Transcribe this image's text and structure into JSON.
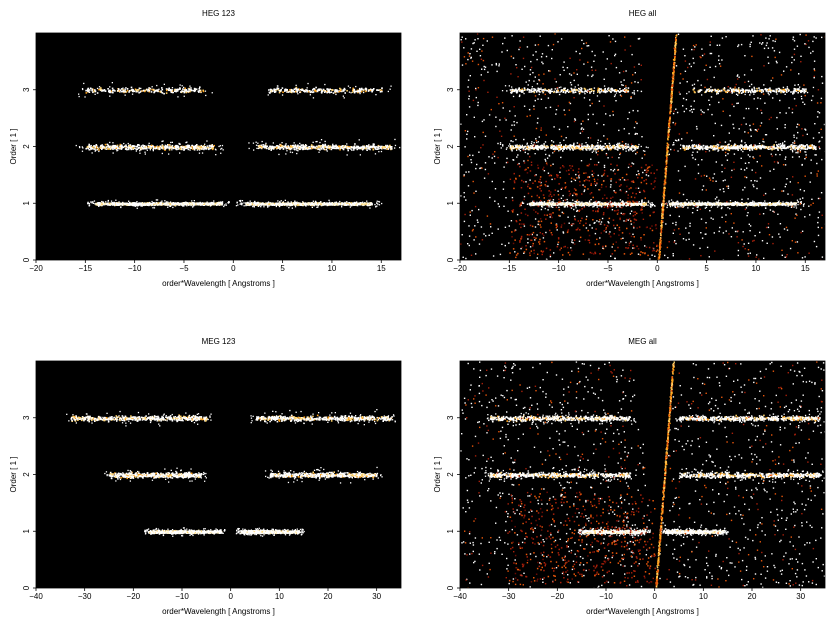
{
  "chart_data": [
    {
      "type": "heatmap",
      "title": "HEG 123",
      "xlabel": "order*Wavelength [ Angstroms ]",
      "ylabel": "Order [ 1 ]",
      "xlim": [
        -20,
        17
      ],
      "ylim": [
        0,
        4
      ],
      "xticks": [
        -20,
        -15,
        -10,
        -5,
        0,
        5,
        10,
        15
      ],
      "yticks": [
        0,
        1,
        2,
        3
      ],
      "background": "#000000",
      "grid": false,
      "bands": [
        {
          "y": 1,
          "segments": [
            [
              -14,
              -1.2
            ],
            [
              1.2,
              14
            ]
          ],
          "intensity": "high"
        },
        {
          "y": 2,
          "segments": [
            [
              -15,
              -2
            ],
            [
              2.5,
              16
            ]
          ],
          "intensity": "medium"
        },
        {
          "y": 3,
          "segments": [
            [
              -15,
              -3
            ],
            [
              3.5,
              15
            ]
          ],
          "intensity": "low"
        }
      ]
    },
    {
      "type": "heatmap",
      "title": "HEG all",
      "xlabel": "order*Wavelength [ Angstroms ]",
      "ylabel": "Order [ 1 ]",
      "xlim": [
        -20,
        17
      ],
      "ylim": [
        0,
        4
      ],
      "xticks": [
        -20,
        -15,
        -10,
        -5,
        0,
        5,
        10,
        15
      ],
      "yticks": [
        0,
        1,
        2,
        3
      ],
      "background": "#000000",
      "grid": false,
      "bands": [
        {
          "y": 1,
          "segments": [
            [
              -13,
              -1.2
            ],
            [
              1.2,
              14
            ]
          ],
          "intensity": "high"
        },
        {
          "y": 2,
          "segments": [
            [
              -15,
              -2
            ],
            [
              2.5,
              16
            ]
          ],
          "intensity": "medium"
        },
        {
          "y": 3,
          "segments": [
            [
              -15,
              -3
            ],
            [
              3.5,
              15
            ]
          ],
          "intensity": "low"
        }
      ]
    },
    {
      "type": "heatmap",
      "title": "MEG 123",
      "xlabel": "order*Wavelength [ Angstroms ]",
      "ylabel": "Order [ 1 ]",
      "xlim": [
        -40,
        35
      ],
      "ylim": [
        0,
        4
      ],
      "xticks": [
        -40,
        -30,
        -20,
        -10,
        0,
        10,
        20,
        30
      ],
      "yticks": [
        0,
        1,
        2,
        3
      ],
      "background": "#000000",
      "grid": false,
      "bands": [
        {
          "y": 1,
          "segments": [
            [
              -17,
              -2
            ],
            [
              2,
              14
            ]
          ],
          "intensity": "high"
        },
        {
          "y": 2,
          "segments": [
            [
              -25,
              -6
            ],
            [
              8,
              30
            ]
          ],
          "intensity": "medium"
        },
        {
          "y": 3,
          "segments": [
            [
              -33,
              -5
            ],
            [
              5,
              33
            ]
          ],
          "intensity": "medium"
        }
      ]
    },
    {
      "type": "heatmap",
      "title": "MEG all",
      "xlabel": "order*Wavelength [ Angstroms ]",
      "ylabel": "Order [ 1 ]",
      "xlim": [
        -40,
        35
      ],
      "ylim": [
        0,
        4
      ],
      "xticks": [
        -40,
        -30,
        -20,
        -10,
        0,
        10,
        20,
        30
      ],
      "yticks": [
        0,
        1,
        2,
        3
      ],
      "background": "#000000",
      "grid": false,
      "bands": [
        {
          "y": 1,
          "segments": [
            [
              -15,
              -2
            ],
            [
              2,
              14
            ]
          ],
          "intensity": "high"
        },
        {
          "y": 2,
          "segments": [
            [
              -34,
              -5
            ],
            [
              5,
              34
            ]
          ],
          "intensity": "medium"
        },
        {
          "y": 3,
          "segments": [
            [
              -34,
              -5
            ],
            [
              5,
              34
            ]
          ],
          "intensity": "medium"
        }
      ]
    }
  ]
}
